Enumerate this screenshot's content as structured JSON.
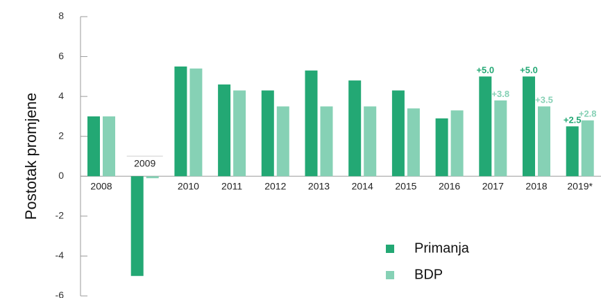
{
  "chart_data": {
    "type": "bar",
    "ylabel": "Postotak promjene",
    "categories": [
      "2008",
      "2009",
      "2010",
      "2011",
      "2012",
      "2013",
      "2014",
      "2015",
      "2016",
      "2017",
      "2018",
      "2019*"
    ],
    "series": [
      {
        "name": "Primanja",
        "color": "#23a874",
        "values": [
          3.0,
          -5.0,
          5.5,
          4.6,
          4.3,
          5.3,
          4.8,
          4.3,
          2.9,
          5.0,
          5.0,
          2.5
        ],
        "labels": [
          "",
          "",
          "",
          "",
          "",
          "",
          "",
          "",
          "",
          "+5.0",
          "+5.0",
          "+2.5"
        ]
      },
      {
        "name": "BDP",
        "color": "#86d1b5",
        "values": [
          3.0,
          -0.1,
          5.4,
          4.3,
          3.5,
          3.5,
          3.5,
          3.4,
          3.3,
          3.8,
          3.5,
          2.8
        ],
        "labels": [
          "",
          "",
          "",
          "",
          "",
          "",
          "",
          "",
          "",
          "+3.8",
          "+3.5",
          "+2.8"
        ]
      }
    ],
    "ylim": [
      -6,
      8
    ],
    "yticks": [
      -6,
      -4,
      -2,
      0,
      2,
      4,
      6,
      8
    ],
    "legend_position": "bottom-right",
    "grid": false
  }
}
